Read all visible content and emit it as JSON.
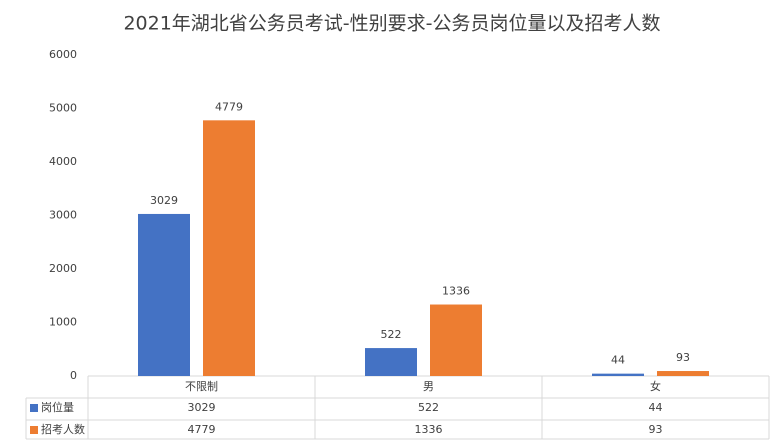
{
  "chart_data": {
    "type": "bar",
    "title": "2021年湖北省公务员考试-性别要求-公务员岗位量以及招考人数",
    "categories": [
      "不限制",
      "男",
      "女"
    ],
    "series": [
      {
        "name": "岗位量",
        "color": "#4472c4",
        "values": [
          3029,
          522,
          44
        ]
      },
      {
        "name": "招考人数",
        "color": "#ed7d31",
        "values": [
          4779,
          1336,
          93
        ]
      }
    ],
    "ylim": [
      0,
      6000
    ],
    "yticks": [
      0,
      1000,
      2000,
      3000,
      4000,
      5000,
      6000
    ],
    "grid": false,
    "data_labels": true,
    "data_table": true
  }
}
